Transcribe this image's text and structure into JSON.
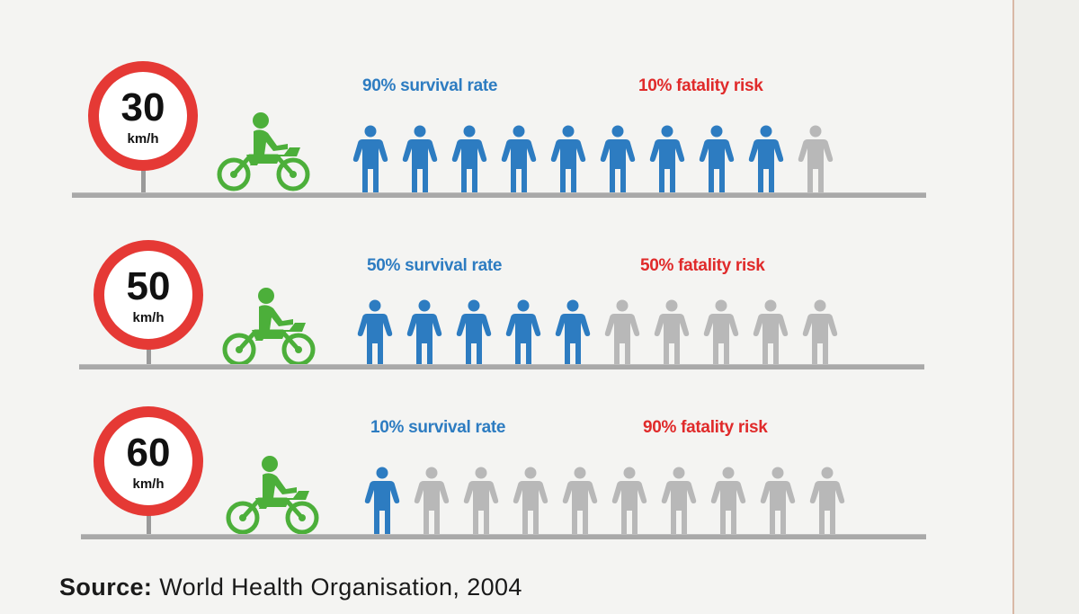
{
  "colors": {
    "survivor": "#2d7cc1",
    "fatality_figure": "#b8b8b8",
    "survival_text": "#2d7cc1",
    "fatality_text": "#e02a2a",
    "sign_ring": "#e53935",
    "bike": "#4caf3a"
  },
  "rows": [
    {
      "speed": "30",
      "unit": "km/h",
      "survival_text": "90% survival rate",
      "fatality_text": "10% fatality risk",
      "survivors": 9,
      "total": 10
    },
    {
      "speed": "50",
      "unit": "km/h",
      "survival_text": "50% survival rate",
      "fatality_text": "50% fatality risk",
      "survivors": 5,
      "total": 10
    },
    {
      "speed": "60",
      "unit": "km/h",
      "survival_text": "10% survival rate",
      "fatality_text": "90% fatality risk",
      "survivors": 1,
      "total": 10
    }
  ],
  "source": {
    "label": "Source:",
    "text": " World Health Organisation, 2004"
  },
  "icons": {
    "sign": "speed-limit-sign-icon",
    "bike": "motorcyclist-icon",
    "person": "person-icon"
  }
}
